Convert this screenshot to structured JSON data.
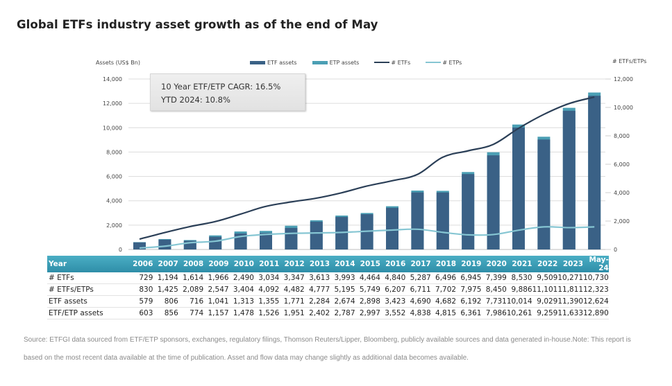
{
  "title": "Global ETFs industry asset growth as of the end of May",
  "callout": {
    "line1": "10 Year ETF/ETP CAGR: 16.5%",
    "line2": "YTD 2024: 10.8%"
  },
  "colors": {
    "etf_assets": "#3a6186",
    "etp_assets": "#4b9fb4",
    "etfs_line": "#2b3f57",
    "etps_line": "#86c6d3",
    "header_bar": "#3a9fb8",
    "grid": "#d9d9d9"
  },
  "chart_data": {
    "type": "bar",
    "title": "Global ETFs industry asset growth as of the end of May",
    "categories": [
      "2006",
      "2007",
      "2008",
      "2009",
      "2010",
      "2011",
      "2012",
      "2013",
      "2014",
      "2015",
      "2016",
      "2017",
      "2018",
      "2019",
      "2020",
      "2021",
      "2022",
      "2023",
      "May-24"
    ],
    "left_axis": {
      "label": "Assets (US$ Bn)",
      "range": [
        0,
        14000
      ],
      "ticks": [
        "0",
        "2,000",
        "4,000",
        "6,000",
        "8,000",
        "10,000",
        "12,000",
        "14,000"
      ]
    },
    "right_axis": {
      "label": "# ETFs/ETPs",
      "range": [
        0,
        12000
      ],
      "ticks": [
        "0",
        "2,000",
        "4,000",
        "6,000",
        "8,000",
        "10,000",
        "12,000"
      ]
    },
    "legend_position": "top",
    "grid": true,
    "series": [
      {
        "name": "ETF assets",
        "type": "bar",
        "axis": "left",
        "values": [
          579,
          806,
          716,
          1041,
          1313,
          1355,
          1771,
          2284,
          2674,
          2898,
          3423,
          4690,
          4682,
          6192,
          7731,
          10014,
          9029,
          11390,
          12624
        ]
      },
      {
        "name": "ETP assets",
        "type": "bar-stacked-top",
        "axis": "left",
        "values": [
          603,
          856,
          774,
          1157,
          1478,
          1526,
          1951,
          2402,
          2787,
          2997,
          3552,
          4838,
          4815,
          6361,
          7986,
          10261,
          9259,
          11633,
          12890
        ]
      },
      {
        "name": "# ETFs",
        "type": "line",
        "axis": "right",
        "values": [
          729,
          1194,
          1614,
          1966,
          2490,
          3034,
          3347,
          3613,
          3993,
          4464,
          4840,
          5287,
          6496,
          6945,
          7399,
          8530,
          9509,
          10271,
          10730
        ]
      },
      {
        "name": "# ETPs",
        "type": "line",
        "axis": "right",
        "values": [
          101,
          231,
          475,
          581,
          914,
          1058,
          1135,
          1164,
          1202,
          1285,
          1367,
          1424,
          1206,
          1030,
          1051,
          1356,
          1592,
          1540,
          1593
        ]
      }
    ]
  },
  "legend": [
    {
      "label": "ETF assets",
      "kind": "bar",
      "color": "#3a6186"
    },
    {
      "label": "ETP assets",
      "kind": "bar",
      "color": "#4b9fb4"
    },
    {
      "label": "# ETFs",
      "kind": "line",
      "color": "#2b3f57"
    },
    {
      "label": "# ETPs",
      "kind": "line",
      "color": "#86c6d3"
    }
  ],
  "table": {
    "header": "Year",
    "columns": [
      "2006",
      "2007",
      "2008",
      "2009",
      "2010",
      "2011",
      "2012",
      "2013",
      "2014",
      "2015",
      "2016",
      "2017",
      "2018",
      "2019",
      "2020",
      "2021",
      "2022",
      "2023",
      "May-24"
    ],
    "rows": [
      {
        "label": "# ETFs",
        "values": [
          "729",
          "1,194",
          "1,614",
          "1,966",
          "2,490",
          "3,034",
          "3,347",
          "3,613",
          "3,993",
          "4,464",
          "4,840",
          "5,287",
          "6,496",
          "6,945",
          "7,399",
          "8,530",
          "9,509",
          "10,271",
          "10,730"
        ]
      },
      {
        "label": "# ETFs/ETPs",
        "values": [
          "830",
          "1,425",
          "2,089",
          "2,547",
          "3,404",
          "4,092",
          "4,482",
          "4,777",
          "5,195",
          "5,749",
          "6,207",
          "6,711",
          "7,702",
          "7,975",
          "8,450",
          "9,886",
          "11,101",
          "11,811",
          "12,323"
        ]
      },
      {
        "label": "ETF assets",
        "values": [
          "579",
          "806",
          "716",
          "1,041",
          "1,313",
          "1,355",
          "1,771",
          "2,284",
          "2,674",
          "2,898",
          "3,423",
          "4,690",
          "4,682",
          "6,192",
          "7,731",
          "10,014",
          "9,029",
          "11,390",
          "12,624"
        ]
      },
      {
        "label": "ETF/ETP assets",
        "values": [
          "603",
          "856",
          "774",
          "1,157",
          "1,478",
          "1,526",
          "1,951",
          "2,402",
          "2,787",
          "2,997",
          "3,552",
          "4,838",
          "4,815",
          "6,361",
          "7,986",
          "10,261",
          "9,259",
          "11,633",
          "12,890"
        ]
      }
    ]
  },
  "source_text": "Source: ETFGI data sourced from ETF/ETP sponsors, exchanges, regulatory filings, Thomson Reuters/Lipper, Bloomberg, publicly available sources and data generated in-house.Note: This report is based on the most recent data available at the time of publication. Asset and flow data may change slightly as additional data becomes available."
}
